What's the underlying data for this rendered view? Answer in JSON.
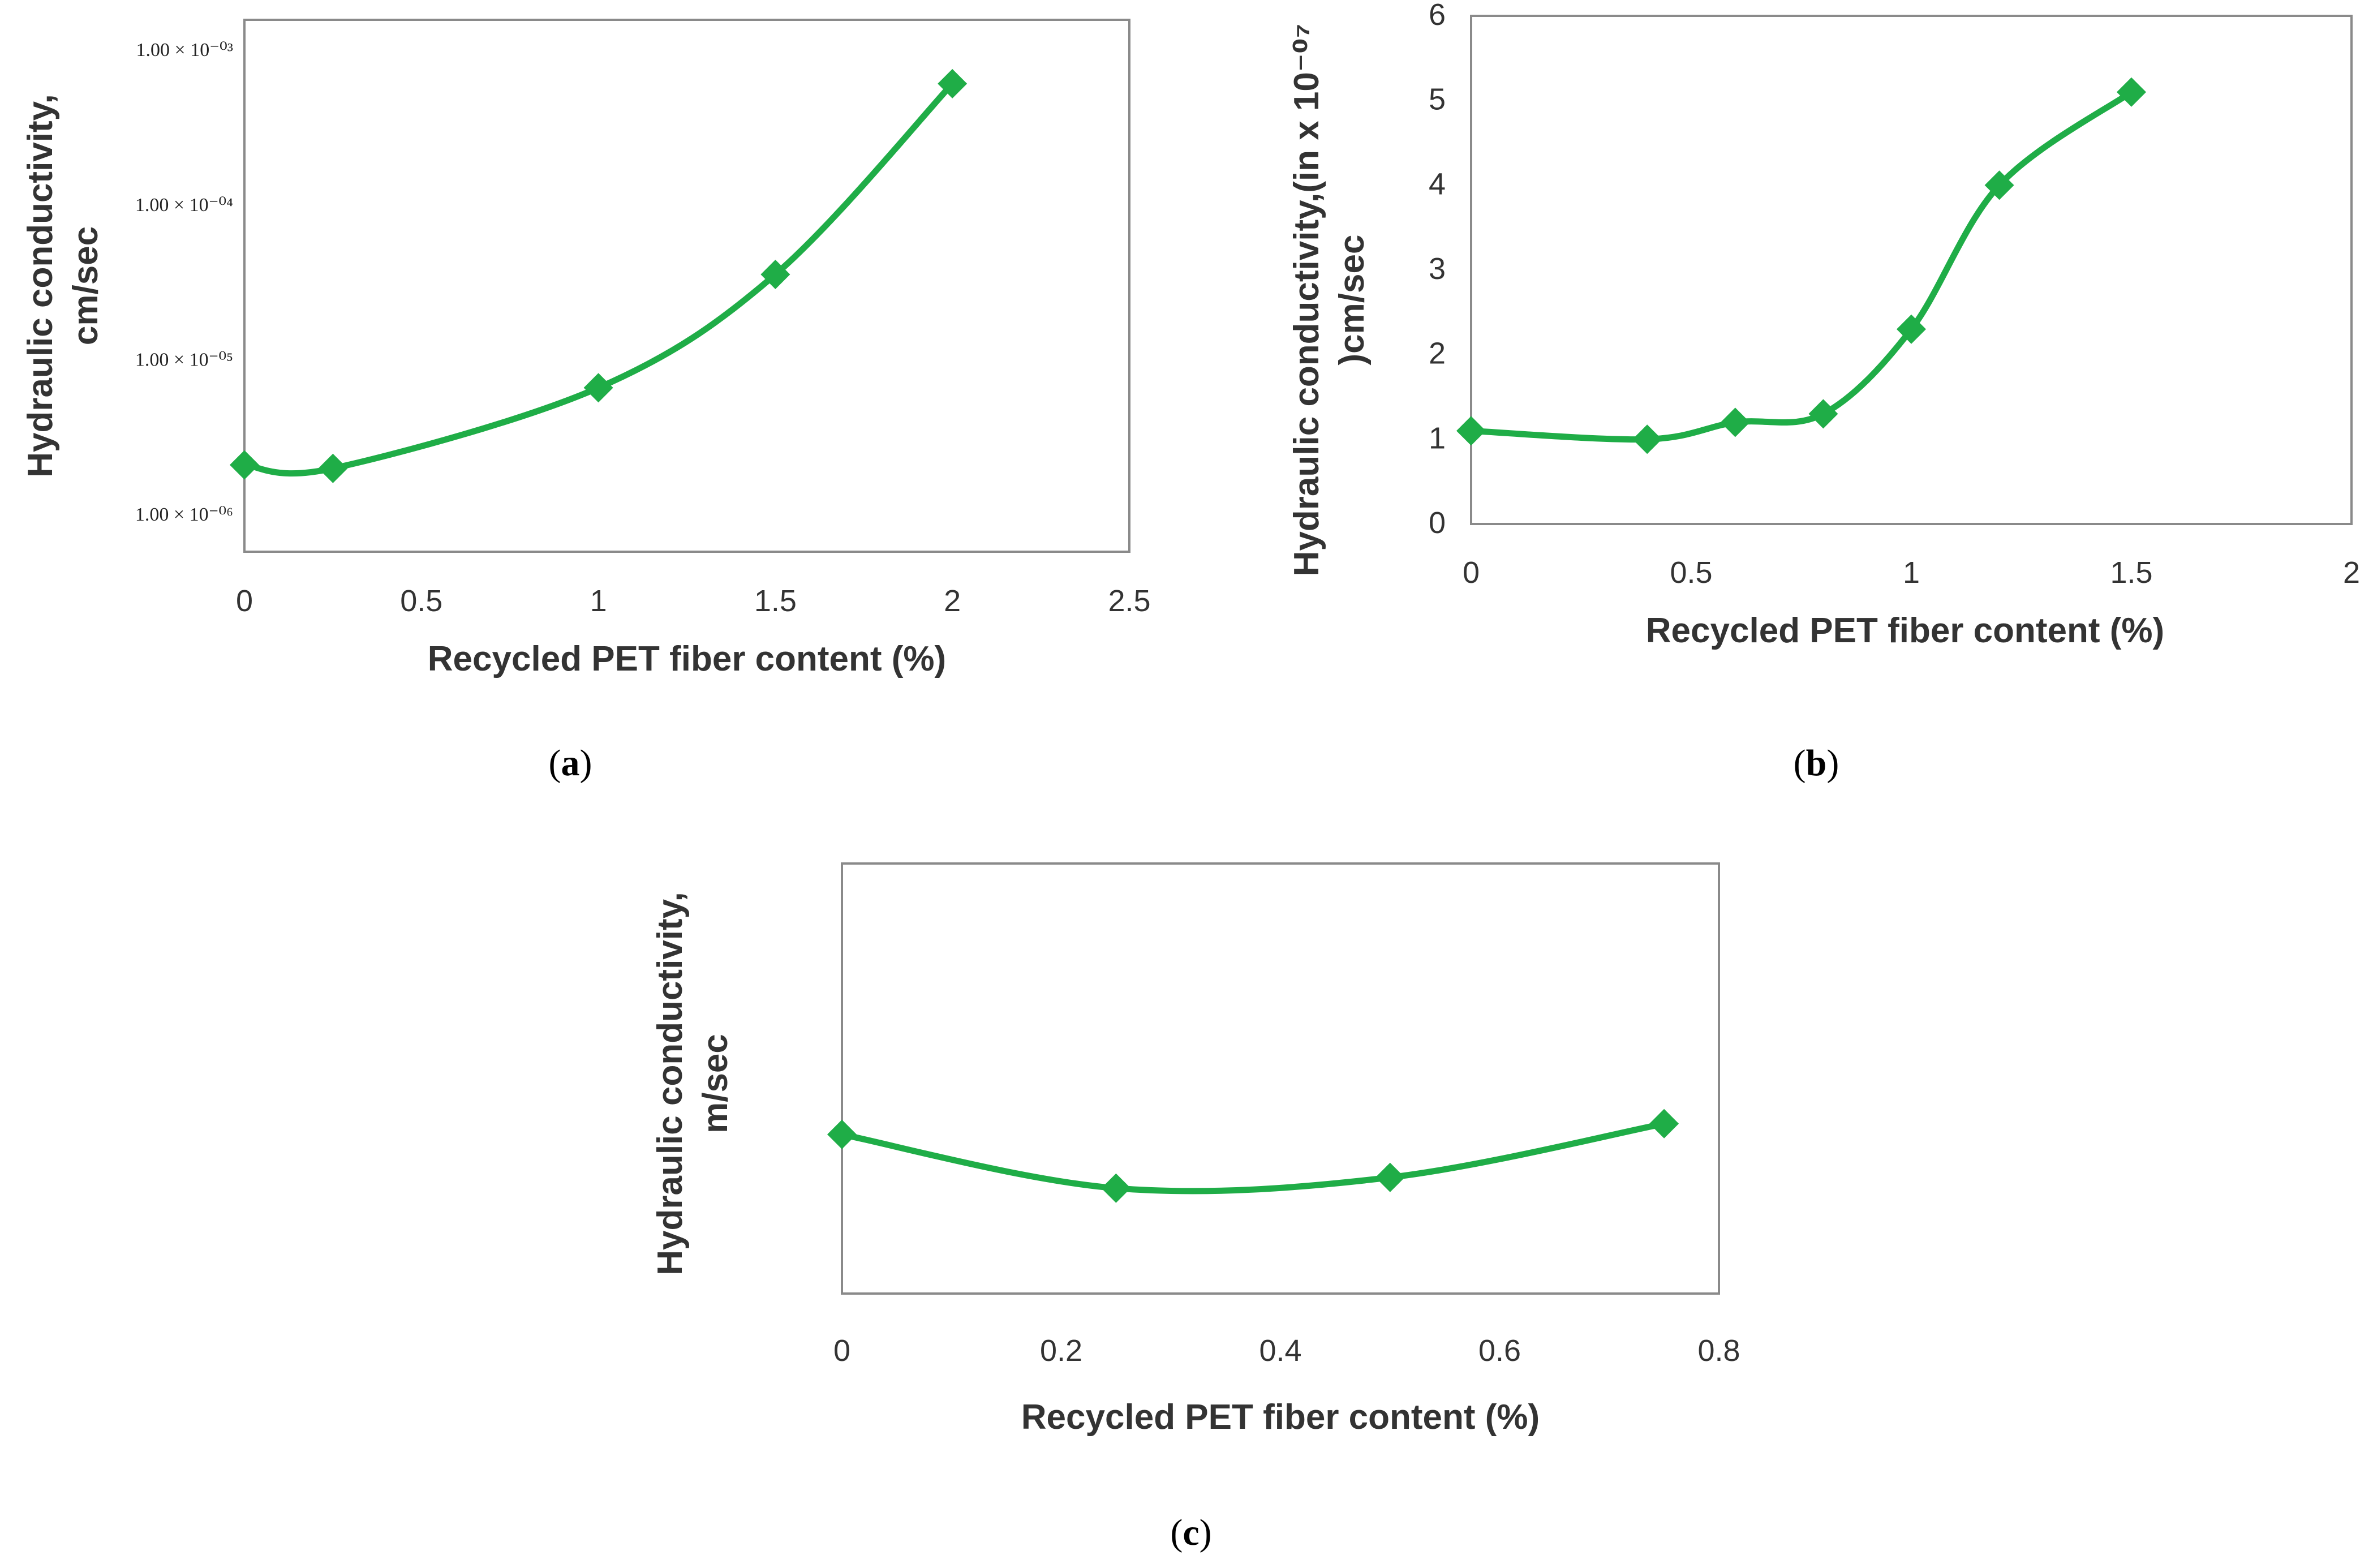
{
  "colors": {
    "series": "#1fad47",
    "frame": "#8a8a8a"
  },
  "chart_data": [
    {
      "panel": "a",
      "caption": "a",
      "type": "line",
      "xlabel": "Recycled PET fiber content (%)",
      "ylabel": [
        "Hydraulic conductivity,",
        "cm/sec"
      ],
      "x_scale": "linear",
      "y_scale": "log",
      "xlim": [
        0,
        2.5
      ],
      "ylim": [
        5.5e-07,
        0.0015
      ],
      "x_ticks": [
        0,
        0.5,
        1,
        1.5,
        2,
        2.5
      ],
      "x_tick_labels": [
        "0",
        "0.5",
        "1",
        "1.5",
        "2",
        "2.5"
      ],
      "y_ticks": [
        1e-06,
        1e-05,
        0.0001,
        0.001
      ],
      "y_tick_labels": [
        "1.00 × 10⁻⁰⁶",
        "1.00 × 10⁻⁰⁵",
        "1.00 × 10⁻⁰⁴",
        "1.00 × 10⁻⁰³"
      ],
      "grid": false,
      "legend": "none",
      "series": [
        {
          "marker": "diamond",
          "x": [
            0,
            0.25,
            1,
            1.5,
            2
          ],
          "y": [
            2e-06,
            1.9e-06,
            6.3e-06,
            3.4e-05,
            0.00058
          ]
        }
      ]
    },
    {
      "panel": "b",
      "caption": "b",
      "type": "line",
      "xlabel": "Recycled PET fiber content (%)",
      "ylabel": [
        "Hydraulic conductivity,(in x 10⁻⁰⁷",
        ")cm/sec"
      ],
      "x_scale": "linear",
      "y_scale": "linear",
      "xlim": [
        0,
        2
      ],
      "ylim": [
        0,
        6
      ],
      "x_ticks": [
        0,
        0.5,
        1,
        1.5,
        2
      ],
      "x_tick_labels": [
        "0",
        "0.5",
        "1",
        "1.5",
        "2"
      ],
      "y_ticks": [
        0,
        1,
        2,
        3,
        4,
        5,
        6
      ],
      "y_tick_labels": [
        "0",
        "1",
        "2",
        "3",
        "4",
        "5",
        "6"
      ],
      "grid": false,
      "legend": "none",
      "series": [
        {
          "marker": "diamond",
          "x": [
            0,
            0.4,
            0.6,
            0.8,
            1,
            1.2,
            1.5
          ],
          "y": [
            1.1,
            1.0,
            1.2,
            1.3,
            2.3,
            4.0,
            5.1
          ]
        }
      ]
    },
    {
      "panel": "c",
      "caption": "c",
      "type": "line",
      "xlabel": "Recycled PET fiber content (%)",
      "ylabel": [
        "Hydraulic conductivity,",
        "m/sec"
      ],
      "x_scale": "linear",
      "y_scale": "linear",
      "xlim": [
        0,
        0.8
      ],
      "ylim": [
        0,
        1
      ],
      "y_axis_note": "no y tick labels shown; y values relative to plot height (0 = bottom, 1 = top)",
      "x_ticks": [
        0,
        0.2,
        0.4,
        0.6,
        0.8
      ],
      "x_tick_labels": [
        "0",
        "0.2",
        "0.4",
        "0.6",
        "0.8"
      ],
      "y_ticks": [],
      "y_tick_labels": [],
      "grid": false,
      "legend": "none",
      "series": [
        {
          "marker": "diamond",
          "x": [
            0,
            0.25,
            0.5,
            0.75
          ],
          "y": [
            0.37,
            0.245,
            0.27,
            0.395
          ]
        }
      ]
    }
  ]
}
